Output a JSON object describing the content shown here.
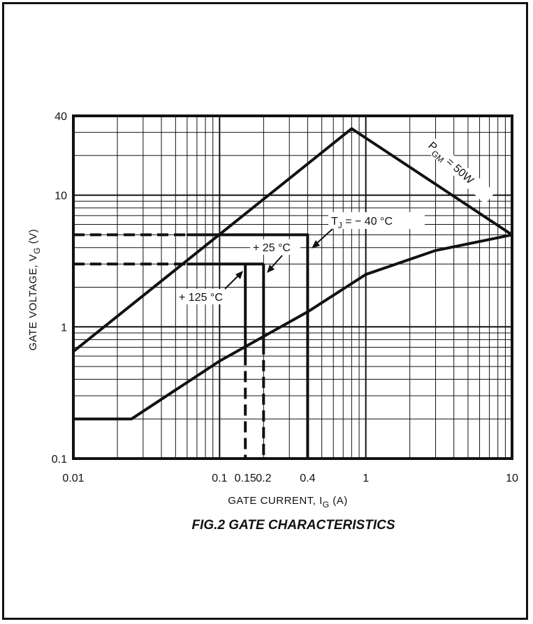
{
  "chart_data": {
    "type": "line",
    "title": "FIG.2 GATE CHARACTERISTICS",
    "xlabel": {
      "main": "GATE CURRENT, I",
      "sub": "G",
      "unit": "(A)"
    },
    "ylabel": {
      "main": "GATE VOLTAGE, V",
      "sub": "G",
      "unit": "(V)"
    },
    "x_scale": "log",
    "y_scale": "log",
    "xlim": [
      0.01,
      10
    ],
    "ylim": [
      0.1,
      40
    ],
    "grid": true,
    "x_ticks": [
      {
        "value": 0.01,
        "label": "0.01"
      },
      {
        "value": 0.1,
        "label": "0.1"
      },
      {
        "value": 0.15,
        "label": "0.15"
      },
      {
        "value": 0.2,
        "label": "0.2"
      },
      {
        "value": 0.4,
        "label": "0.4"
      },
      {
        "value": 1,
        "label": "1"
      },
      {
        "value": 10,
        "label": "10"
      }
    ],
    "y_ticks": [
      {
        "value": 0.1,
        "label": "0.1"
      },
      {
        "value": 1,
        "label": "1"
      },
      {
        "value": 10,
        "label": "10"
      },
      {
        "value": 40,
        "label": "40"
      }
    ],
    "series": [
      {
        "key": "upper",
        "style": "solid",
        "points": [
          [
            0.01,
            0.65
          ],
          [
            0.8,
            32
          ],
          [
            10,
            5
          ]
        ]
      },
      {
        "key": "lower",
        "style": "solid",
        "points": [
          [
            0.01,
            0.2
          ],
          [
            0.025,
            0.2
          ],
          [
            0.1,
            0.55
          ],
          [
            0.4,
            1.3
          ],
          [
            1,
            2.5
          ],
          [
            3,
            3.8
          ],
          [
            10,
            5
          ]
        ]
      },
      {
        "key": "tj_minus40",
        "style": "solid",
        "points": [
          [
            0.06,
            5
          ],
          [
            0.4,
            5
          ],
          [
            0.4,
            0.1
          ]
        ]
      },
      {
        "key": "tj_minus40_dashed",
        "style": "dashed",
        "points": [
          [
            0.01,
            5
          ],
          [
            0.06,
            5
          ]
        ]
      },
      {
        "key": "tj_25_125",
        "style": "solid",
        "points": [
          [
            0.06,
            3
          ],
          [
            0.2,
            3
          ]
        ]
      },
      {
        "key": "tj_25_125_dashed",
        "style": "dashed",
        "points": [
          [
            0.01,
            3
          ],
          [
            0.06,
            3
          ]
        ]
      },
      {
        "key": "tj_25_vert",
        "style": "solid",
        "points": [
          [
            0.2,
            3
          ],
          [
            0.2,
            0.75
          ]
        ]
      },
      {
        "key": "tj_25_vert_dashed",
        "style": "dashed",
        "points": [
          [
            0.2,
            0.75
          ],
          [
            0.2,
            0.1
          ]
        ]
      },
      {
        "key": "tj_125_vert",
        "style": "solid",
        "points": [
          [
            0.15,
            3
          ],
          [
            0.15,
            0.62
          ]
        ]
      },
      {
        "key": "tj_125_vert_dashed",
        "style": "dashed",
        "points": [
          [
            0.15,
            0.62
          ],
          [
            0.15,
            0.1
          ]
        ]
      }
    ],
    "annotations": [
      {
        "key": "pgm",
        "text": "P",
        "sub": "GM",
        "suffix": " = 50W"
      },
      {
        "key": "tj40",
        "text": "T",
        "sub": "J",
        "suffix": " = − 40 °C"
      },
      {
        "key": "tj25",
        "text": "+ 25 °C"
      },
      {
        "key": "tj125",
        "text": "+ 125 °C"
      }
    ]
  }
}
